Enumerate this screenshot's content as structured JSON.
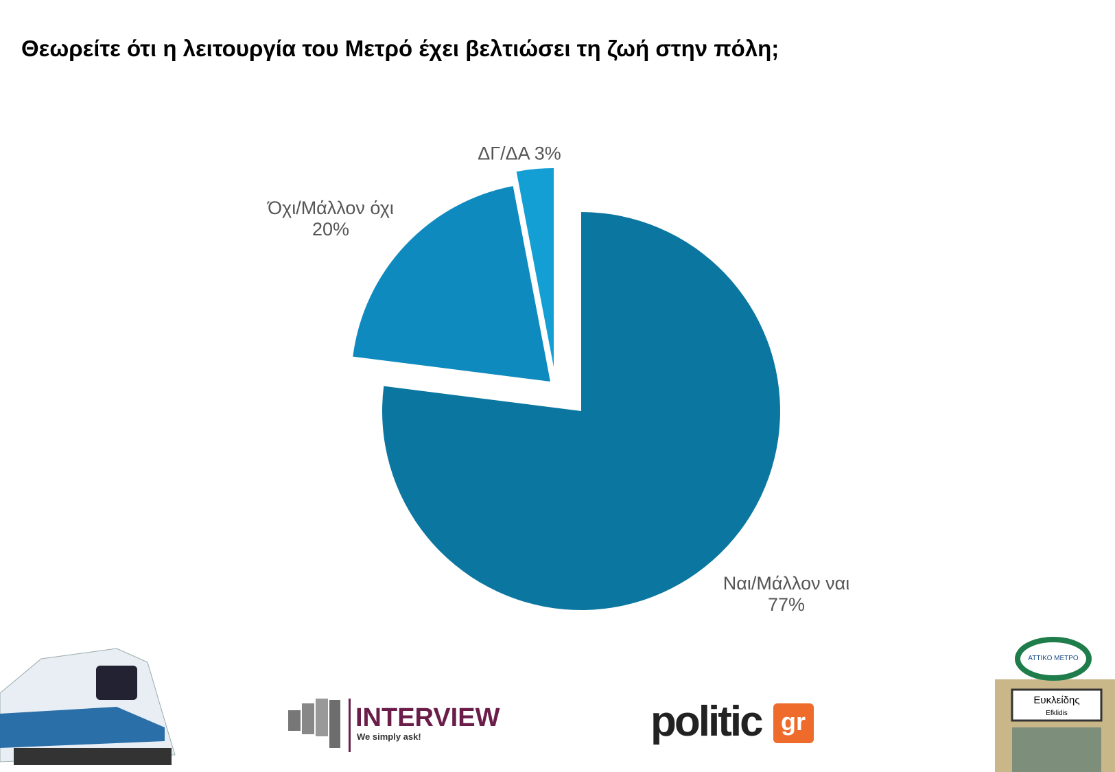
{
  "chart_data": {
    "type": "pie",
    "title": "Θεωρείτε ότι η λειτουργία του Μετρό έχει βελτιώσει τη ζωή στην πόλη;",
    "categories": [
      "Ναι/Μάλλον ναι",
      "Όχι/Μάλλον όχι",
      "ΔΓ/ΔΑ"
    ],
    "values": [
      77,
      20,
      3
    ],
    "value_labels": [
      "77%",
      "20%",
      "3%"
    ],
    "colors": [
      "#0b77a0",
      "#0e8abf",
      "#139fd3"
    ]
  },
  "footer": {
    "interview_name": "INTERVIEW",
    "interview_slogan": "We simply ask!",
    "politic_name": "politic",
    "politic_suffix": "gr",
    "sign_top": "ΑΤΤΙΚΟ ΜΕΤΡΟ",
    "sign_station": "Ευκλείδης",
    "sign_station_latin": "Efklidis"
  }
}
